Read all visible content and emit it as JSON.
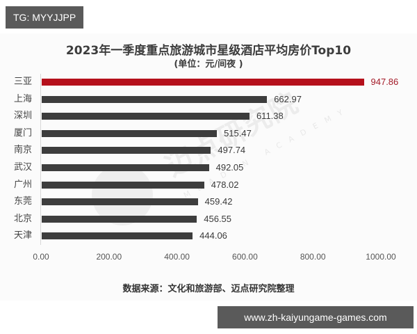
{
  "overlay": {
    "tag_label": "TG: MYYJJPP",
    "site_url": "www.zh-kaiyungame-games.com"
  },
  "chart": {
    "title": "2023年一季度重点旅游城市星级酒店平均房价Top10",
    "subtitle": "(单位：元/间夜 )",
    "source": "数据来源：文化和旅游部、迈点研究院整理",
    "watermark": "迈点研究院",
    "watermark_sub": "MEADIN ACADEMY",
    "colors": {
      "highlight": "#b5101b",
      "bar": "#3d3d3d"
    },
    "ticks": [
      "0.00",
      "200.00",
      "400.00",
      "600.00",
      "800.00",
      "1000.00"
    ]
  },
  "chart_data": {
    "type": "bar",
    "orientation": "horizontal",
    "title": "2023年一季度重点旅游城市星级酒店平均房价Top10",
    "subtitle": "(单位：元/间夜 )",
    "xlabel": "",
    "ylabel": "",
    "xlim": [
      0,
      1000
    ],
    "x_ticks": [
      "0.00",
      "200.00",
      "400.00",
      "600.00",
      "800.00",
      "1000.00"
    ],
    "grid": false,
    "legend": null,
    "categories": [
      "三亚",
      "上海",
      "深圳",
      "厦门",
      "南京",
      "武汉",
      "广州",
      "东莞",
      "北京",
      "天津"
    ],
    "values": [
      947.86,
      662.97,
      611.38,
      515.47,
      497.74,
      492.05,
      478.02,
      459.42,
      456.55,
      444.06
    ],
    "value_labels": [
      "947.86",
      "662.97",
      "611.38",
      "515.47",
      "497.74",
      "492.05",
      "478.02",
      "459.42",
      "456.55",
      "444.06"
    ],
    "highlighted_category": "三亚",
    "source": "数据来源：文化和旅游部、迈点研究院整理"
  }
}
